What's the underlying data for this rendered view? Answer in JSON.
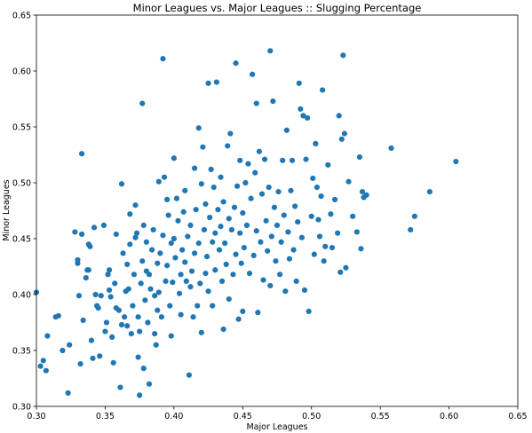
{
  "chart_data": {
    "type": "scatter",
    "title": "Minor Leagues vs. Major Leagues :: Slugging Percentage",
    "xlabel": "Major Leagues",
    "ylabel": "Minor Leagues",
    "xlim": [
      0.3,
      0.65
    ],
    "ylim": [
      0.3,
      0.65
    ],
    "xticks": [
      "0.30",
      "0.35",
      "0.40",
      "0.45",
      "0.50",
      "0.55",
      "0.60",
      "0.65"
    ],
    "yticks": [
      "0.30",
      "0.35",
      "0.40",
      "0.45",
      "0.50",
      "0.55",
      "0.60",
      "0.65"
    ],
    "grid": false,
    "marker_color": "#1f77b4",
    "series": [
      {
        "points": [
          [
            0.3,
            0.402
          ],
          [
            0.303,
            0.336
          ],
          [
            0.305,
            0.341
          ],
          [
            0.307,
            0.332
          ],
          [
            0.308,
            0.363
          ],
          [
            0.314,
            0.38
          ],
          [
            0.316,
            0.381
          ],
          [
            0.319,
            0.35
          ],
          [
            0.323,
            0.312
          ],
          [
            0.324,
            0.355
          ],
          [
            0.328,
            0.456
          ],
          [
            0.33,
            0.431
          ],
          [
            0.33,
            0.428
          ],
          [
            0.331,
            0.399
          ],
          [
            0.332,
            0.338
          ],
          [
            0.333,
            0.526
          ],
          [
            0.333,
            0.454
          ],
          [
            0.334,
            0.377
          ],
          [
            0.336,
            0.415
          ],
          [
            0.337,
            0.422
          ],
          [
            0.338,
            0.422
          ],
          [
            0.338,
            0.445
          ],
          [
            0.339,
            0.443
          ],
          [
            0.34,
            0.359
          ],
          [
            0.341,
            0.343
          ],
          [
            0.342,
            0.46
          ],
          [
            0.343,
            0.4
          ],
          [
            0.344,
            0.39
          ],
          [
            0.345,
            0.388
          ],
          [
            0.346,
            0.345
          ],
          [
            0.347,
            0.399
          ],
          [
            0.349,
            0.462
          ],
          [
            0.35,
            0.367
          ],
          [
            0.351,
            0.375
          ],
          [
            0.352,
            0.418
          ],
          [
            0.353,
            0.404
          ],
          [
            0.353,
            0.422
          ],
          [
            0.354,
            0.398
          ],
          [
            0.355,
            0.362
          ],
          [
            0.356,
            0.339
          ],
          [
            0.357,
            0.41
          ],
          [
            0.358,
            0.388
          ],
          [
            0.358,
            0.454
          ],
          [
            0.36,
            0.386
          ],
          [
            0.361,
            0.317
          ],
          [
            0.362,
            0.499
          ],
          [
            0.362,
            0.373
          ],
          [
            0.363,
            0.437
          ],
          [
            0.364,
            0.38
          ],
          [
            0.365,
            0.403
          ],
          [
            0.366,
            0.427
          ],
          [
            0.366,
            0.372
          ],
          [
            0.367,
            0.405
          ],
          [
            0.368,
            0.472
          ],
          [
            0.368,
            0.445
          ],
          [
            0.369,
            0.365
          ],
          [
            0.37,
            0.39
          ],
          [
            0.371,
            0.418
          ],
          [
            0.372,
            0.451
          ],
          [
            0.372,
            0.48
          ],
          [
            0.373,
            0.455
          ],
          [
            0.374,
            0.38
          ],
          [
            0.374,
            0.344
          ],
          [
            0.375,
            0.31
          ],
          [
            0.375,
            0.367
          ],
          [
            0.376,
            0.41
          ],
          [
            0.377,
            0.571
          ],
          [
            0.377,
            0.43
          ],
          [
            0.378,
            0.462
          ],
          [
            0.378,
            0.334
          ],
          [
            0.379,
            0.395
          ],
          [
            0.38,
            0.421
          ],
          [
            0.38,
            0.447
          ],
          [
            0.381,
            0.375
          ],
          [
            0.382,
            0.418
          ],
          [
            0.382,
            0.32
          ],
          [
            0.383,
            0.405
          ],
          [
            0.384,
            0.44
          ],
          [
            0.385,
            0.458
          ],
          [
            0.386,
            0.399
          ],
          [
            0.386,
            0.365
          ],
          [
            0.387,
            0.355
          ],
          [
            0.388,
            0.386
          ],
          [
            0.388,
            0.428
          ],
          [
            0.389,
            0.402
          ],
          [
            0.389,
            0.501
          ],
          [
            0.39,
            0.437
          ],
          [
            0.391,
            0.38
          ],
          [
            0.392,
            0.611
          ],
          [
            0.392,
            0.453
          ],
          [
            0.393,
            0.505
          ],
          [
            0.394,
            0.412
          ],
          [
            0.395,
            0.485
          ],
          [
            0.395,
            0.426
          ],
          [
            0.396,
            0.471
          ],
          [
            0.397,
            0.39
          ],
          [
            0.398,
            0.446
          ],
          [
            0.398,
            0.363
          ],
          [
            0.399,
            0.411
          ],
          [
            0.4,
            0.45
          ],
          [
            0.4,
            0.522
          ],
          [
            0.401,
            0.433
          ],
          [
            0.402,
            0.486
          ],
          [
            0.403,
            0.466
          ],
          [
            0.404,
            0.401
          ],
          [
            0.405,
            0.418
          ],
          [
            0.405,
            0.382
          ],
          [
            0.406,
            0.44
          ],
          [
            0.407,
            0.474
          ],
          [
            0.408,
            0.493
          ],
          [
            0.408,
            0.429
          ],
          [
            0.409,
            0.412
          ],
          [
            0.41,
            0.452
          ],
          [
            0.411,
            0.328
          ],
          [
            0.412,
            0.407
          ],
          [
            0.412,
            0.462
          ],
          [
            0.413,
            0.421
          ],
          [
            0.414,
            0.38
          ],
          [
            0.415,
            0.437
          ],
          [
            0.415,
            0.513
          ],
          [
            0.416,
            0.476
          ],
          [
            0.417,
            0.39
          ],
          [
            0.418,
            0.446
          ],
          [
            0.418,
            0.549
          ],
          [
            0.419,
            0.41
          ],
          [
            0.42,
            0.499
          ],
          [
            0.42,
            0.366
          ],
          [
            0.421,
            0.532
          ],
          [
            0.422,
            0.458
          ],
          [
            0.423,
            0.419
          ],
          [
            0.423,
            0.481
          ],
          [
            0.424,
            0.434
          ],
          [
            0.425,
            0.589
          ],
          [
            0.425,
            0.403
          ],
          [
            0.426,
            0.469
          ],
          [
            0.427,
            0.512
          ],
          [
            0.428,
            0.447
          ],
          [
            0.428,
            0.39
          ],
          [
            0.429,
            0.496
          ],
          [
            0.43,
            0.455
          ],
          [
            0.43,
            0.422
          ],
          [
            0.431,
            0.59
          ],
          [
            0.432,
            0.476
          ],
          [
            0.433,
            0.44
          ],
          [
            0.434,
            0.461
          ],
          [
            0.434,
            0.505
          ],
          [
            0.435,
            0.412
          ],
          [
            0.436,
            0.483
          ],
          [
            0.436,
            0.369
          ],
          [
            0.437,
            0.446
          ],
          [
            0.438,
            0.427
          ],
          [
            0.439,
            0.533
          ],
          [
            0.44,
            0.468
          ],
          [
            0.44,
            0.396
          ],
          [
            0.441,
            0.544
          ],
          [
            0.442,
            0.458
          ],
          [
            0.443,
            0.418
          ],
          [
            0.444,
            0.478
          ],
          [
            0.445,
            0.607
          ],
          [
            0.445,
            0.436
          ],
          [
            0.446,
            0.497
          ],
          [
            0.447,
            0.378
          ],
          [
            0.448,
            0.455
          ],
          [
            0.448,
            0.52
          ],
          [
            0.449,
            0.428
          ],
          [
            0.45,
            0.473
          ],
          [
            0.45,
            0.385
          ],
          [
            0.451,
            0.442
          ],
          [
            0.452,
            0.5
          ],
          [
            0.453,
            0.462
          ],
          [
            0.454,
            0.517
          ],
          [
            0.455,
            0.419
          ],
          [
            0.456,
            0.486
          ],
          [
            0.457,
            0.597
          ],
          [
            0.458,
            0.435
          ],
          [
            0.459,
            0.509
          ],
          [
            0.46,
            0.457
          ],
          [
            0.46,
            0.571
          ],
          [
            0.461,
            0.384
          ],
          [
            0.462,
            0.528
          ],
          [
            0.463,
            0.447
          ],
          [
            0.464,
            0.49
          ],
          [
            0.465,
            0.413
          ],
          [
            0.466,
            0.521
          ],
          [
            0.467,
            0.466
          ],
          [
            0.468,
            0.439
          ],
          [
            0.469,
            0.496
          ],
          [
            0.47,
            0.618
          ],
          [
            0.47,
            0.408
          ],
          [
            0.471,
            0.452
          ],
          [
            0.472,
            0.573
          ],
          [
            0.473,
            0.478
          ],
          [
            0.474,
            0.43
          ],
          [
            0.475,
            0.462
          ],
          [
            0.476,
            0.492
          ],
          [
            0.477,
            0.418
          ],
          [
            0.478,
            0.447
          ],
          [
            0.479,
            0.52
          ],
          [
            0.48,
            0.471
          ],
          [
            0.481,
            0.403
          ],
          [
            0.482,
            0.547
          ],
          [
            0.483,
            0.456
          ],
          [
            0.484,
            0.432
          ],
          [
            0.485,
            0.493
          ],
          [
            0.486,
            0.52
          ],
          [
            0.487,
            0.44
          ],
          [
            0.488,
            0.479
          ],
          [
            0.489,
            0.412
          ],
          [
            0.49,
            0.465
          ],
          [
            0.491,
            0.589
          ],
          [
            0.492,
            0.566
          ],
          [
            0.493,
            0.451
          ],
          [
            0.494,
            0.56
          ],
          [
            0.495,
            0.404
          ],
          [
            0.496,
            0.521
          ],
          [
            0.497,
            0.558
          ],
          [
            0.498,
            0.385
          ],
          [
            0.5,
            0.47
          ],
          [
            0.501,
            0.504
          ],
          [
            0.502,
            0.436
          ],
          [
            0.503,
            0.535
          ],
          [
            0.504,
            0.496
          ],
          [
            0.505,
            0.467
          ],
          [
            0.506,
            0.452
          ],
          [
            0.507,
            0.488
          ],
          [
            0.508,
            0.583
          ],
          [
            0.509,
            0.43
          ],
          [
            0.51,
            0.443
          ],
          [
            0.512,
            0.516
          ],
          [
            0.514,
            0.472
          ],
          [
            0.515,
            0.442
          ],
          [
            0.517,
            0.485
          ],
          [
            0.519,
            0.455
          ],
          [
            0.52,
            0.56
          ],
          [
            0.521,
            0.42
          ],
          [
            0.522,
            0.539
          ],
          [
            0.523,
            0.614
          ],
          [
            0.524,
            0.544
          ],
          [
            0.525,
            0.424
          ],
          [
            0.527,
            0.501
          ],
          [
            0.53,
            0.47
          ],
          [
            0.533,
            0.456
          ],
          [
            0.535,
            0.523
          ],
          [
            0.536,
            0.441
          ],
          [
            0.537,
            0.492
          ],
          [
            0.538,
            0.487
          ],
          [
            0.54,
            0.489
          ],
          [
            0.558,
            0.531
          ],
          [
            0.572,
            0.458
          ],
          [
            0.575,
            0.47
          ],
          [
            0.586,
            0.492
          ],
          [
            0.605,
            0.519
          ]
        ]
      }
    ]
  }
}
